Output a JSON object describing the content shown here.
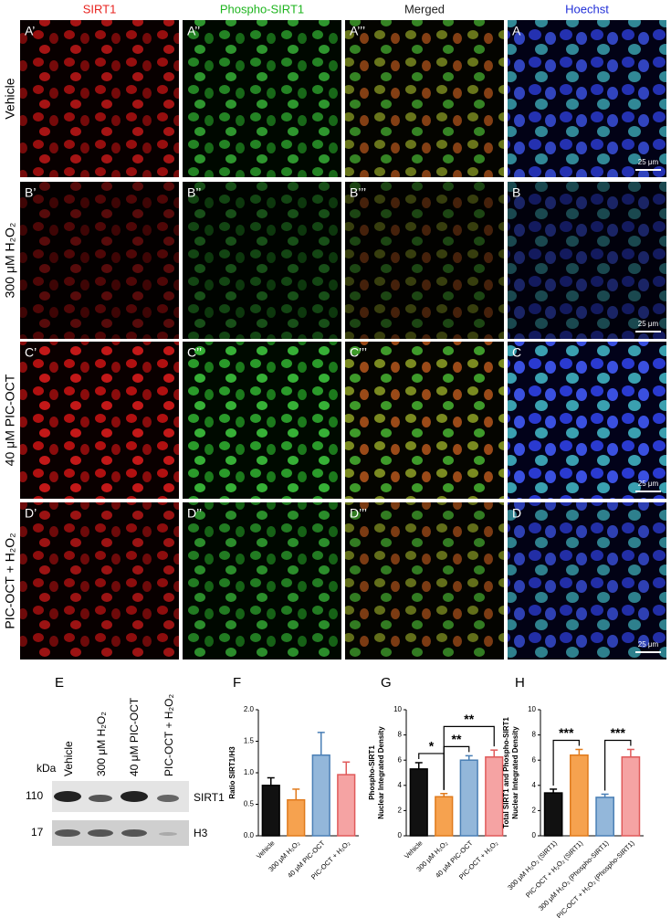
{
  "figure": {
    "column_headers": [
      "SIRT1",
      "Phospho-SIRT1",
      "Merged",
      "Hoechst"
    ],
    "rows": [
      {
        "label": "Vehicle",
        "panels": [
          "A’",
          "A’’",
          "A’’’",
          "A"
        ]
      },
      {
        "label": "300 μM H₂O₂",
        "panels": [
          "B’",
          "B’’",
          "B’’’",
          "B"
        ]
      },
      {
        "label": "40 μM PIC-OCT",
        "panels": [
          "C’",
          "C’’",
          "C’’’",
          "C"
        ]
      },
      {
        "label": "PIC-OCT + H₂O₂",
        "panels": [
          "D’",
          "D’’",
          "D’’’",
          "D"
        ]
      }
    ],
    "scale_bar": "25 μm"
  },
  "blot": {
    "panel": "E",
    "lanes": [
      "Vehicle",
      "300 μM H₂O₂",
      "40 μM PIC-OCT",
      "PIC-OCT + H₂O₂"
    ],
    "unit": "kDa",
    "bands": [
      {
        "mw": "110",
        "name": "SIRT1"
      },
      {
        "mw": "17",
        "name": "H3"
      }
    ]
  },
  "chart_data": [
    {
      "type": "bar",
      "panel": "F",
      "ylabel": [
        "Ratio SIRT1/H3"
      ],
      "categories": [
        "Vehicle",
        "300 μM H₂O₂",
        "40 μM PIC-OCT",
        "PIC-OCT + H₂O₂"
      ],
      "values": [
        0.8,
        0.57,
        1.28,
        0.97
      ],
      "errors": [
        0.12,
        0.17,
        0.36,
        0.2
      ],
      "colors": [
        "#111111",
        "#f6a24f",
        "#93b7da",
        "#f5a3a3"
      ],
      "edge_colors": [
        "#000000",
        "#e07a1c",
        "#4a7fb5",
        "#e05a5a"
      ],
      "ylim": [
        0,
        2
      ],
      "yticks": [
        {
          "value": 0,
          "label": "0.0"
        },
        0.5,
        {
          "value": 1,
          "label": "1.0"
        },
        1.5,
        {
          "value": 2,
          "label": "2.0"
        }
      ],
      "annotations": []
    },
    {
      "type": "bar",
      "panel": "G",
      "ylabel": [
        "Phospho-SIRT1",
        "Nuclear Integrated Density"
      ],
      "categories": [
        "Vehicle",
        "300 μM H₂O₂",
        "40 μM PIC-OCT",
        "PIC-OCT + H₂O₂"
      ],
      "values": [
        5.3,
        3.1,
        6.0,
        6.25
      ],
      "errors": [
        0.5,
        0.25,
        0.35,
        0.55
      ],
      "colors": [
        "#111111",
        "#f6a24f",
        "#93b7da",
        "#f5a3a3"
      ],
      "edge_colors": [
        "#000000",
        "#e07a1c",
        "#4a7fb5",
        "#e05a5a"
      ],
      "ylim": [
        0,
        10
      ],
      "yticks": [
        0,
        2,
        4,
        6,
        8,
        10
      ],
      "annotations": [
        {
          "label": "*",
          "pair": [
            0,
            1
          ]
        },
        {
          "label": "**",
          "pair": [
            1,
            2
          ]
        },
        {
          "label": "**",
          "pair": [
            1,
            3
          ]
        }
      ]
    },
    {
      "type": "bar",
      "panel": "H",
      "ylabel": [
        "Total SIRT1 and Phospho-SIRT1",
        "Nuclear Integrated Density"
      ],
      "categories": [
        "300 μM H₂O₂ (SIRT1)",
        "PIC-OCT + H₂O₂ (SIRT1)",
        "300 μM H₂O₂ (Phospho-SIRT1)",
        "PIC-OCT + H₂O₂ (Phospho-SIRT1)"
      ],
      "values": [
        3.4,
        6.4,
        3.05,
        6.25
      ],
      "errors": [
        0.3,
        0.45,
        0.25,
        0.6
      ],
      "colors": [
        "#111111",
        "#f6a24f",
        "#93b7da",
        "#f5a3a3"
      ],
      "edge_colors": [
        "#000000",
        "#e07a1c",
        "#4a7fb5",
        "#e05a5a"
      ],
      "ylim": [
        0,
        10
      ],
      "yticks": [
        0,
        2,
        4,
        6,
        8,
        10
      ],
      "annotations": [
        {
          "label": "***",
          "pair": [
            0,
            1
          ]
        },
        {
          "label": "***",
          "pair": [
            2,
            3
          ]
        }
      ]
    }
  ]
}
